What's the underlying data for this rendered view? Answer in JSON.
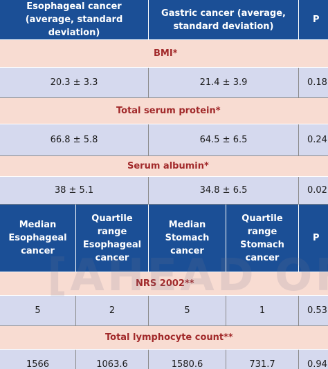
{
  "top_header": {
    "esophageal": "Esophageal cancer\n(average, standard deviation)",
    "gastric": "Gastric cancer (average,\nstandard deviation)",
    "p": "P"
  },
  "section_bmi": "BMI*",
  "row_bmi": {
    "esophageal": "20.3 ± 3.3",
    "gastric": "21.4 ± 3.9",
    "p": "0.18"
  },
  "section_protein": "Total serum protein*",
  "row_protein": {
    "esophageal": "66.8 ± 5.8",
    "gastric": "64.5 ± 6.5",
    "p": "0.24"
  },
  "section_albumin": "Serum albumin*",
  "row_albumin": {
    "esophageal": "38 ± 5.1",
    "gastric": "34.8 ± 6.5",
    "p": "0.02"
  },
  "mid_header": {
    "median_esophageal": "Median\nEsophageal\ncancer",
    "quartile_esophageal": "Quartile\nrange\nEsophageal\ncancer",
    "median_stomach": "Median\nStomach\ncancer",
    "quartile_stomach": "Quartile\nrange\nStomach\ncancer",
    "p": "P"
  },
  "section_nrs": "NRS 2002**",
  "row_nrs": {
    "median_esophageal": "5",
    "quartile_esophageal": "2",
    "median_stomach": "5",
    "quartile_stomach": "1",
    "p": "0.53"
  },
  "section_lymph": "Total lymphocyte count**",
  "row_lymph": {
    "median_esophageal": "1566",
    "quartile_esophageal": "1063.6",
    "median_stomach": "1580.6",
    "quartile_stomach": "731.7",
    "p": "0.94"
  },
  "watermark": "[AHEAD OF P"
}
